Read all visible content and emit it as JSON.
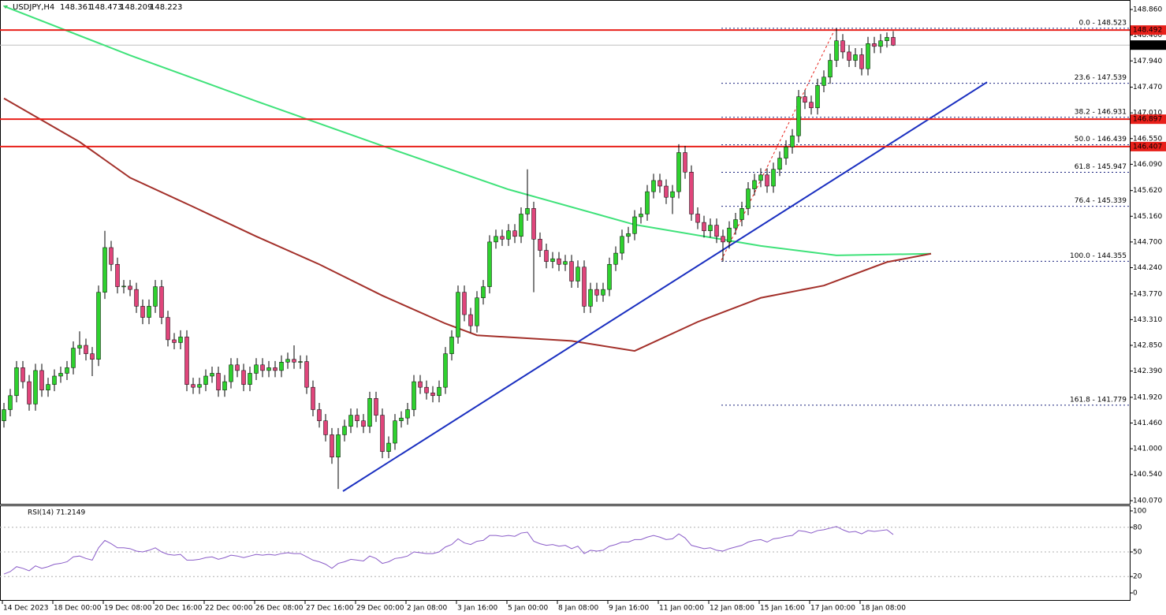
{
  "chart_data": {
    "type": "candlestick",
    "title": "USDJPY,H4",
    "header_values": [
      148.361,
      148.473,
      148.209,
      148.223
    ],
    "bull_color": "#2ed12e",
    "bear_color": "#e0457b",
    "ylim": [
      140.0,
      149.03
    ],
    "yticks": [
      {
        "value": 148.86,
        "label": "148.860"
      },
      {
        "value": 148.4,
        "label": "148.400"
      },
      {
        "value": 147.94,
        "label": "147.940"
      },
      {
        "value": 147.47,
        "label": "147.470"
      },
      {
        "value": 147.01,
        "label": "147.010"
      },
      {
        "value": 146.55,
        "label": "146.550"
      },
      {
        "value": 146.09,
        "label": "146.090"
      },
      {
        "value": 145.62,
        "label": "145.620"
      },
      {
        "value": 145.16,
        "label": "145.160"
      },
      {
        "value": 144.7,
        "label": "144.700"
      },
      {
        "value": 144.24,
        "label": "144.240"
      },
      {
        "value": 143.77,
        "label": "143.770"
      },
      {
        "value": 143.31,
        "label": "143.310"
      },
      {
        "value": 142.85,
        "label": "142.850"
      },
      {
        "value": 142.39,
        "label": "142.390"
      },
      {
        "value": 141.92,
        "label": "141.920"
      },
      {
        "value": 141.46,
        "label": "141.460"
      },
      {
        "value": 141.0,
        "label": "141.000"
      },
      {
        "value": 140.54,
        "label": "140.540"
      },
      {
        "value": 140.07,
        "label": "140.070"
      }
    ],
    "categories": [
      "14 Dec 2023",
      null,
      null,
      null,
      null,
      null,
      null,
      null,
      "18 Dec 00:00",
      null,
      null,
      null,
      null,
      null,
      null,
      null,
      "19 Dec 08:00",
      null,
      null,
      null,
      null,
      null,
      null,
      null,
      "20 Dec 16:00",
      null,
      null,
      null,
      null,
      null,
      null,
      null,
      "22 Dec 00:00",
      null,
      null,
      null,
      null,
      null,
      null,
      null,
      "26 Dec 08:00",
      null,
      null,
      null,
      null,
      null,
      null,
      null,
      "27 Dec 16:00",
      null,
      null,
      null,
      null,
      null,
      null,
      null,
      "29 Dec 00:00",
      null,
      null,
      null,
      null,
      null,
      null,
      null,
      "2 Jan 08:00",
      null,
      null,
      null,
      null,
      null,
      null,
      null,
      "3 Jan 16:00",
      null,
      null,
      null,
      null,
      null,
      null,
      null,
      "5 Jan 00:00",
      null,
      null,
      null,
      null,
      null,
      null,
      null,
      "8 Jan 08:00",
      null,
      null,
      null,
      null,
      null,
      null,
      null,
      "9 Jan 16:00",
      null,
      null,
      null,
      null,
      null,
      null,
      null,
      "11 Jan 00:00",
      null,
      null,
      null,
      null,
      null,
      null,
      null,
      "12 Jan 08:00",
      null,
      null,
      null,
      null,
      null,
      null,
      null,
      "15 Jan 16:00",
      null,
      null,
      null,
      null,
      null,
      null,
      null,
      "17 Jan 00:00",
      null,
      null,
      null,
      null,
      null,
      null,
      null,
      "18 Jan 08:00",
      null,
      null,
      null,
      null,
      null
    ],
    "candles": [
      [
        141.5,
        141.82,
        141.38,
        141.7
      ],
      [
        141.7,
        142.07,
        141.58,
        141.95
      ],
      [
        141.95,
        142.57,
        141.83,
        142.45
      ],
      [
        142.45,
        142.57,
        142.08,
        142.2
      ],
      [
        142.2,
        142.32,
        141.68,
        141.8
      ],
      [
        141.8,
        142.52,
        141.68,
        142.4
      ],
      [
        142.4,
        142.52,
        141.93,
        142.05
      ],
      [
        142.05,
        142.27,
        141.93,
        142.15
      ],
      [
        142.15,
        142.42,
        142.03,
        142.3
      ],
      [
        142.3,
        142.47,
        142.18,
        142.35
      ],
      [
        142.35,
        142.57,
        142.23,
        142.45
      ],
      [
        142.45,
        142.92,
        142.33,
        142.8
      ],
      [
        142.8,
        143.1,
        142.68,
        142.85
      ],
      [
        142.85,
        142.97,
        142.58,
        142.7
      ],
      [
        142.7,
        142.82,
        142.3,
        142.6
      ],
      [
        142.6,
        143.92,
        142.48,
        143.8
      ],
      [
        143.8,
        144.9,
        143.68,
        144.6
      ],
      [
        144.6,
        144.72,
        144.18,
        144.3
      ],
      [
        144.3,
        144.42,
        143.78,
        143.9
      ],
      [
        143.9,
        144.02,
        143.78,
        143.91
      ],
      [
        143.91,
        144.02,
        143.73,
        143.85
      ],
      [
        143.85,
        143.97,
        143.43,
        143.55
      ],
      [
        143.55,
        143.67,
        143.23,
        143.35
      ],
      [
        143.35,
        143.67,
        143.23,
        143.55
      ],
      [
        143.55,
        144.02,
        143.43,
        143.9
      ],
      [
        143.9,
        144.02,
        143.23,
        143.35
      ],
      [
        143.35,
        143.47,
        142.83,
        142.95
      ],
      [
        142.95,
        143.07,
        142.78,
        142.9
      ],
      [
        142.9,
        143.12,
        142.78,
        143.0
      ],
      [
        143.0,
        143.12,
        142.03,
        142.15
      ],
      [
        142.15,
        142.27,
        141.98,
        142.1
      ],
      [
        142.1,
        142.27,
        141.98,
        142.15
      ],
      [
        142.15,
        142.42,
        142.03,
        142.3
      ],
      [
        142.3,
        142.47,
        142.18,
        142.35
      ],
      [
        142.35,
        142.47,
        141.93,
        142.05
      ],
      [
        142.05,
        142.32,
        141.93,
        142.2
      ],
      [
        142.2,
        142.62,
        142.08,
        142.5
      ],
      [
        142.5,
        142.62,
        142.28,
        142.4
      ],
      [
        142.4,
        142.52,
        142.03,
        142.15
      ],
      [
        142.15,
        142.47,
        142.03,
        142.35
      ],
      [
        142.35,
        142.62,
        142.23,
        142.5
      ],
      [
        142.5,
        142.62,
        142.28,
        142.4
      ],
      [
        142.4,
        142.57,
        142.28,
        142.45
      ],
      [
        142.45,
        142.57,
        142.28,
        142.4
      ],
      [
        142.4,
        142.67,
        142.28,
        142.55
      ],
      [
        142.55,
        142.72,
        142.43,
        142.6
      ],
      [
        142.6,
        142.85,
        142.43,
        142.55
      ],
      [
        142.55,
        142.67,
        142.43,
        142.56
      ],
      [
        142.56,
        142.67,
        141.98,
        142.1
      ],
      [
        142.1,
        142.22,
        141.58,
        141.7
      ],
      [
        141.7,
        141.82,
        141.38,
        141.5
      ],
      [
        141.5,
        141.62,
        141.13,
        141.25
      ],
      [
        141.25,
        141.37,
        140.73,
        140.85
      ],
      [
        140.85,
        141.37,
        140.28,
        141.25
      ],
      [
        141.25,
        141.52,
        141.13,
        141.4
      ],
      [
        141.4,
        141.72,
        141.28,
        141.6
      ],
      [
        141.6,
        141.72,
        141.38,
        141.5
      ],
      [
        141.5,
        141.62,
        141.28,
        141.4
      ],
      [
        141.4,
        142.02,
        141.28,
        141.9
      ],
      [
        141.9,
        142.02,
        141.48,
        141.6
      ],
      [
        141.6,
        141.72,
        140.83,
        140.95
      ],
      [
        140.95,
        141.22,
        140.83,
        141.1
      ],
      [
        141.1,
        141.62,
        140.98,
        141.5
      ],
      [
        141.5,
        141.67,
        141.38,
        141.55
      ],
      [
        141.55,
        141.82,
        141.43,
        141.7
      ],
      [
        141.7,
        142.32,
        141.58,
        142.2
      ],
      [
        142.2,
        142.32,
        141.98,
        142.1
      ],
      [
        142.1,
        142.22,
        141.88,
        142.0
      ],
      [
        142.0,
        142.12,
        141.83,
        141.95
      ],
      [
        141.95,
        142.22,
        141.83,
        142.1
      ],
      [
        142.1,
        142.82,
        141.98,
        142.7
      ],
      [
        142.7,
        143.12,
        142.58,
        143.0
      ],
      [
        143.0,
        143.92,
        142.88,
        143.8
      ],
      [
        143.8,
        143.92,
        143.28,
        143.4
      ],
      [
        143.4,
        143.52,
        143.08,
        143.2
      ],
      [
        143.2,
        143.82,
        143.08,
        143.7
      ],
      [
        143.7,
        144.02,
        143.58,
        143.9
      ],
      [
        143.9,
        144.82,
        143.78,
        144.7
      ],
      [
        144.7,
        144.92,
        144.58,
        144.8
      ],
      [
        144.8,
        144.92,
        144.63,
        144.75
      ],
      [
        144.75,
        145.02,
        144.63,
        144.9
      ],
      [
        144.9,
        145.02,
        144.68,
        144.8
      ],
      [
        144.8,
        145.32,
        144.68,
        145.2
      ],
      [
        145.2,
        146.0,
        145.08,
        145.3
      ],
      [
        145.3,
        145.42,
        143.8,
        144.75
      ],
      [
        144.75,
        144.87,
        144.43,
        144.55
      ],
      [
        144.55,
        144.67,
        144.23,
        144.35
      ],
      [
        144.35,
        144.52,
        144.23,
        144.4
      ],
      [
        144.4,
        144.52,
        144.18,
        144.3
      ],
      [
        144.3,
        144.47,
        144.18,
        144.35
      ],
      [
        144.35,
        144.47,
        143.88,
        144.0
      ],
      [
        144.0,
        144.37,
        143.88,
        144.25
      ],
      [
        144.25,
        144.37,
        143.43,
        143.55
      ],
      [
        143.55,
        143.97,
        143.43,
        143.85
      ],
      [
        143.85,
        143.97,
        143.63,
        143.75
      ],
      [
        143.75,
        143.97,
        143.63,
        143.85
      ],
      [
        143.85,
        144.42,
        143.73,
        144.3
      ],
      [
        144.3,
        144.62,
        144.18,
        144.5
      ],
      [
        144.5,
        144.92,
        144.38,
        144.8
      ],
      [
        144.8,
        144.97,
        144.68,
        144.85
      ],
      [
        144.85,
        145.27,
        144.73,
        145.15
      ],
      [
        145.15,
        145.32,
        145.03,
        145.2
      ],
      [
        145.2,
        145.72,
        145.08,
        145.6
      ],
      [
        145.6,
        145.92,
        145.48,
        145.8
      ],
      [
        145.8,
        145.92,
        145.58,
        145.7
      ],
      [
        145.7,
        145.82,
        145.38,
        145.5
      ],
      [
        145.5,
        145.72,
        145.2,
        145.6
      ],
      [
        145.6,
        146.45,
        145.48,
        146.3
      ],
      [
        146.3,
        146.42,
        145.83,
        145.95
      ],
      [
        145.95,
        146.07,
        145.08,
        145.2
      ],
      [
        145.2,
        145.32,
        144.93,
        145.05
      ],
      [
        145.05,
        145.17,
        144.78,
        144.9
      ],
      [
        144.9,
        145.12,
        144.78,
        145.0
      ],
      [
        145.0,
        145.12,
        144.68,
        144.8
      ],
      [
        144.8,
        144.92,
        144.35,
        144.7
      ],
      [
        144.7,
        145.07,
        144.58,
        144.95
      ],
      [
        144.95,
        145.22,
        144.83,
        145.1
      ],
      [
        145.1,
        145.42,
        144.98,
        145.3
      ],
      [
        145.3,
        145.77,
        145.18,
        145.65
      ],
      [
        145.65,
        145.92,
        145.53,
        145.8
      ],
      [
        145.8,
        146.02,
        145.68,
        145.9
      ],
      [
        145.9,
        146.02,
        145.58,
        145.7
      ],
      [
        145.7,
        146.12,
        145.58,
        146.0
      ],
      [
        146.0,
        146.32,
        145.88,
        146.2
      ],
      [
        146.2,
        146.52,
        146.08,
        146.4
      ],
      [
        146.4,
        146.72,
        146.28,
        146.6
      ],
      [
        146.6,
        147.42,
        146.48,
        147.3
      ],
      [
        147.3,
        147.42,
        147.08,
        147.2
      ],
      [
        147.2,
        147.32,
        146.98,
        147.1
      ],
      [
        147.1,
        147.62,
        146.98,
        147.5
      ],
      [
        147.5,
        147.77,
        147.38,
        147.65
      ],
      [
        147.65,
        148.07,
        147.53,
        147.95
      ],
      [
        147.95,
        148.52,
        147.83,
        148.3
      ],
      [
        148.3,
        148.42,
        147.98,
        148.1
      ],
      [
        148.1,
        148.22,
        147.83,
        147.95
      ],
      [
        147.95,
        148.17,
        147.83,
        148.05
      ],
      [
        148.05,
        148.17,
        147.68,
        147.8
      ],
      [
        147.8,
        148.37,
        147.68,
        148.25
      ],
      [
        148.25,
        148.37,
        148.08,
        148.2
      ],
      [
        148.2,
        148.42,
        148.08,
        148.3
      ],
      [
        148.3,
        148.45,
        148.18,
        148.361
      ],
      [
        148.361,
        148.473,
        148.209,
        148.223
      ]
    ],
    "series": [
      {
        "name": null,
        "color": "#3fe27a",
        "x": [
          0,
          20,
          40,
          60,
          80,
          100,
          120,
          132,
          147
        ],
        "values": [
          148.92,
          148.04,
          147.22,
          146.42,
          145.64,
          145.01,
          144.63,
          144.46,
          144.49
        ]
      },
      {
        "name": null,
        "color": "#a3302a",
        "x": [
          0,
          12,
          20,
          30,
          40,
          50,
          60,
          70,
          75,
          90,
          100,
          110,
          120,
          130,
          140,
          147
        ],
        "values": [
          147.27,
          146.49,
          145.85,
          145.33,
          144.8,
          144.3,
          143.74,
          143.24,
          143.03,
          142.93,
          142.75,
          143.27,
          143.7,
          143.92,
          144.34,
          144.49
        ]
      }
    ],
    "trendline": {
      "color": "#1a2fc0",
      "x": [
        53.75,
        155.875
      ],
      "values": [
        140.24,
        147.56
      ]
    },
    "hlines": [
      {
        "value": 148.492,
        "label": "148.492",
        "color": "#e8201a"
      },
      {
        "value": 146.897,
        "label": "146.897",
        "color": "#e8201a"
      },
      {
        "value": 146.407,
        "label": "146.407",
        "color": "#e8201a"
      }
    ],
    "current_price": {
      "value": 148.223,
      "label": "148.223"
    },
    "fib_levels": [
      {
        "value": 148.523,
        "label": "0.0 - 148.523"
      },
      {
        "value": 147.539,
        "label": "23.6 - 147.539"
      },
      {
        "value": 146.931,
        "label": "38.2 - 146.931"
      },
      {
        "value": 146.439,
        "label": "50.0 - 146.439"
      },
      {
        "value": 145.947,
        "label": "61.8 - 145.947"
      },
      {
        "value": 145.339,
        "label": "76.4 - 145.339"
      },
      {
        "value": 144.355,
        "label": "100.0 - 144.355"
      },
      {
        "value": 141.779,
        "label": "161.8 - 141.779"
      }
    ],
    "rsi": {
      "title": "RSI(14) 71.2149",
      "color": "#8a5cc8",
      "ylim": [
        -9.6,
        106.7
      ],
      "yticks": [
        100,
        80,
        50,
        20,
        0
      ],
      "levels": [
        80,
        50,
        20
      ],
      "values": [
        23,
        26,
        32,
        30,
        27,
        33,
        30,
        32,
        35,
        36,
        38,
        44,
        45,
        42,
        40,
        55,
        64,
        60,
        55,
        55,
        54,
        51,
        50,
        52,
        55,
        50,
        47,
        46,
        47,
        40,
        40,
        41,
        43,
        44,
        41,
        43,
        46,
        45,
        43,
        45,
        47,
        46,
        47,
        46,
        48,
        49,
        48,
        48,
        44,
        40,
        38,
        35,
        30,
        36,
        38,
        41,
        40,
        39,
        45,
        42,
        36,
        38,
        42,
        43,
        45,
        50,
        49,
        48,
        48,
        50,
        56,
        59,
        66,
        61,
        59,
        63,
        64,
        70,
        70,
        69,
        70,
        69,
        73,
        74,
        63,
        60,
        58,
        59,
        57,
        58,
        54,
        57,
        48,
        52,
        51,
        52,
        57,
        59,
        62,
        62,
        65,
        65,
        68,
        70,
        68,
        65,
        66,
        72,
        67,
        58,
        56,
        54,
        55,
        52,
        51,
        54,
        56,
        58,
        62,
        64,
        65,
        62,
        66,
        67,
        69,
        70,
        76,
        75,
        73,
        76,
        77,
        79,
        81,
        77,
        74,
        75,
        72,
        76,
        75,
        76,
        77,
        71.2149
      ]
    }
  }
}
